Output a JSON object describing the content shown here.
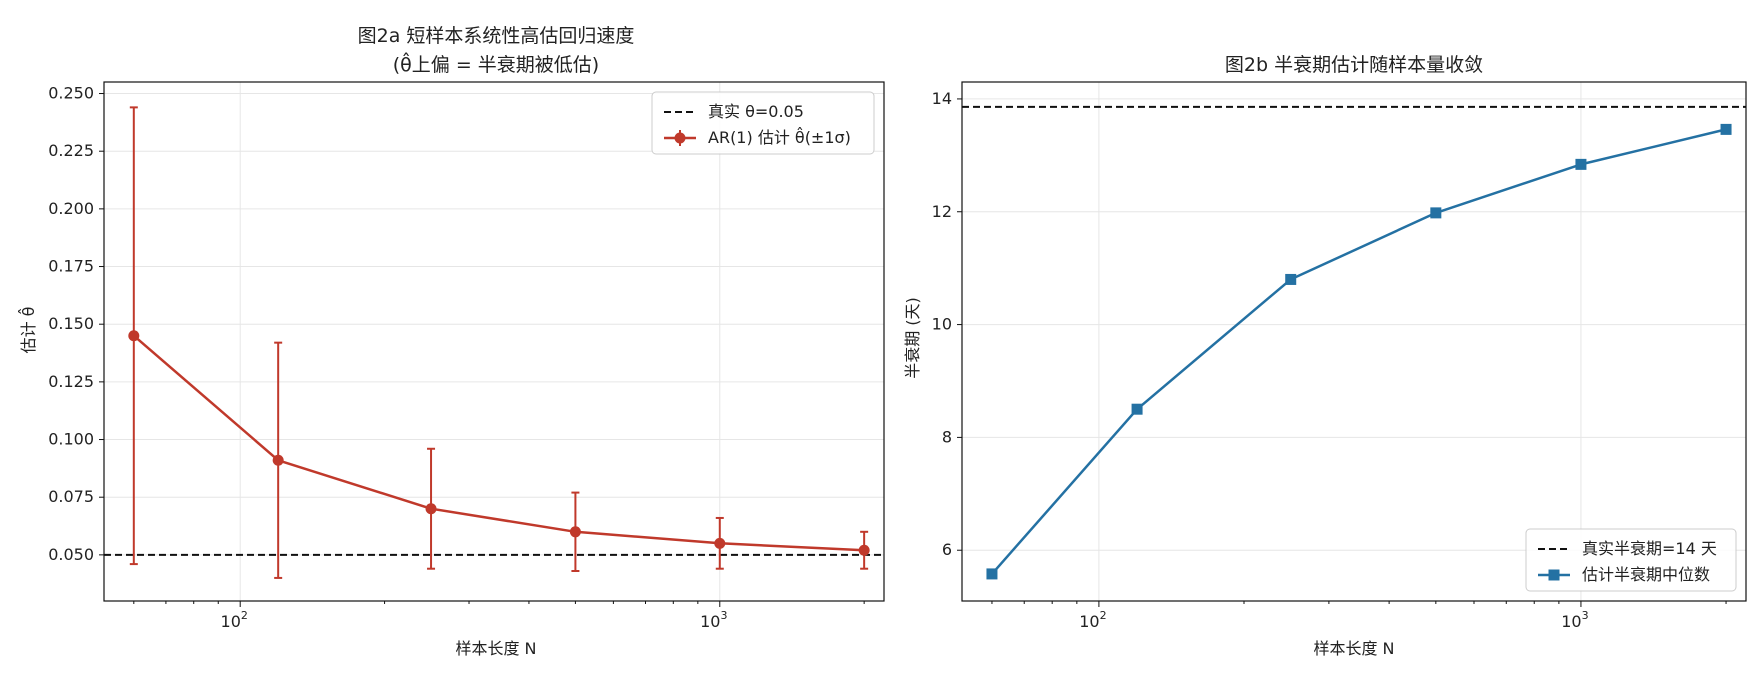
{
  "chart_data": [
    {
      "type": "line",
      "title": "图2a  短样本系统性高估回归速度",
      "subtitle": "(θ̂上偏 = 半衰期被低估)",
      "xlabel": "样本长度 N",
      "ylabel": "估计 θ̂",
      "xscale": "log",
      "xlim": [
        52,
        2200
      ],
      "ylim": [
        0.03,
        0.255
      ],
      "grid": true,
      "x_major_ticks": [
        {
          "value": 100,
          "base": "10",
          "exp": "2"
        },
        {
          "value": 1000,
          "base": "10",
          "exp": "3"
        }
      ],
      "y_ticks": [
        {
          "value": 0.05,
          "label": "0.050"
        },
        {
          "value": 0.075,
          "label": "0.075"
        },
        {
          "value": 0.1,
          "label": "0.100"
        },
        {
          "value": 0.125,
          "label": "0.125"
        },
        {
          "value": 0.15,
          "label": "0.150"
        },
        {
          "value": 0.175,
          "label": "0.175"
        },
        {
          "value": 0.2,
          "label": "0.200"
        },
        {
          "value": 0.225,
          "label": "0.225"
        },
        {
          "value": 0.25,
          "label": "0.250"
        }
      ],
      "reference_line": {
        "y": 0.05,
        "label": "真实 θ=0.05",
        "color": "#111111"
      },
      "series": [
        {
          "name": "AR(1) 估计 θ̂(±1σ)",
          "color": "#c0392b",
          "marker": "circle",
          "x": [
            60,
            120,
            250,
            500,
            1000,
            2000
          ],
          "y": [
            0.145,
            0.091,
            0.07,
            0.06,
            0.055,
            0.052
          ],
          "err": [
            0.099,
            0.051,
            0.026,
            0.017,
            0.011,
            0.008
          ]
        }
      ],
      "legend_position": "top-right"
    },
    {
      "type": "line",
      "title": "图2b  半衰期估计随样本量收敛",
      "xlabel": "样本长度 N",
      "ylabel": "半衰期 (天)",
      "xscale": "log",
      "xlim": [
        52,
        2200
      ],
      "ylim": [
        5.1,
        14.3
      ],
      "grid": true,
      "x_major_ticks": [
        {
          "value": 100,
          "base": "10",
          "exp": "2"
        },
        {
          "value": 1000,
          "base": "10",
          "exp": "3"
        }
      ],
      "y_ticks": [
        {
          "value": 6,
          "label": "6"
        },
        {
          "value": 8,
          "label": "8"
        },
        {
          "value": 10,
          "label": "10"
        },
        {
          "value": 12,
          "label": "12"
        },
        {
          "value": 14,
          "label": "14"
        }
      ],
      "reference_line": {
        "y": 13.86,
        "label": "真实半衰期=14 天",
        "color": "#111111"
      },
      "series": [
        {
          "name": "估计半衰期中位数",
          "color": "#2471a3",
          "marker": "square",
          "x": [
            60,
            120,
            250,
            500,
            1000,
            2000
          ],
          "y": [
            5.58,
            8.5,
            10.8,
            11.98,
            12.84,
            13.46
          ]
        }
      ],
      "legend_position": "bottom-right"
    }
  ]
}
